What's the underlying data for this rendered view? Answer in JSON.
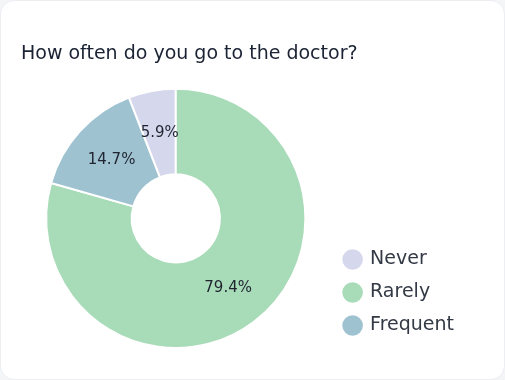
{
  "chart_data": {
    "type": "doughnut",
    "title": "How often do you go to the doctor?",
    "categories": [
      "Never",
      "Rarely",
      "Frequent"
    ],
    "values": [
      5.9,
      79.4,
      14.7
    ],
    "value_labels": [
      "5.9%",
      "79.4%",
      "14.7%"
    ],
    "colors": [
      "#d5d7ec",
      "#a8dbb8",
      "#9fc2d1"
    ],
    "data_labels": true,
    "legend": "right"
  }
}
